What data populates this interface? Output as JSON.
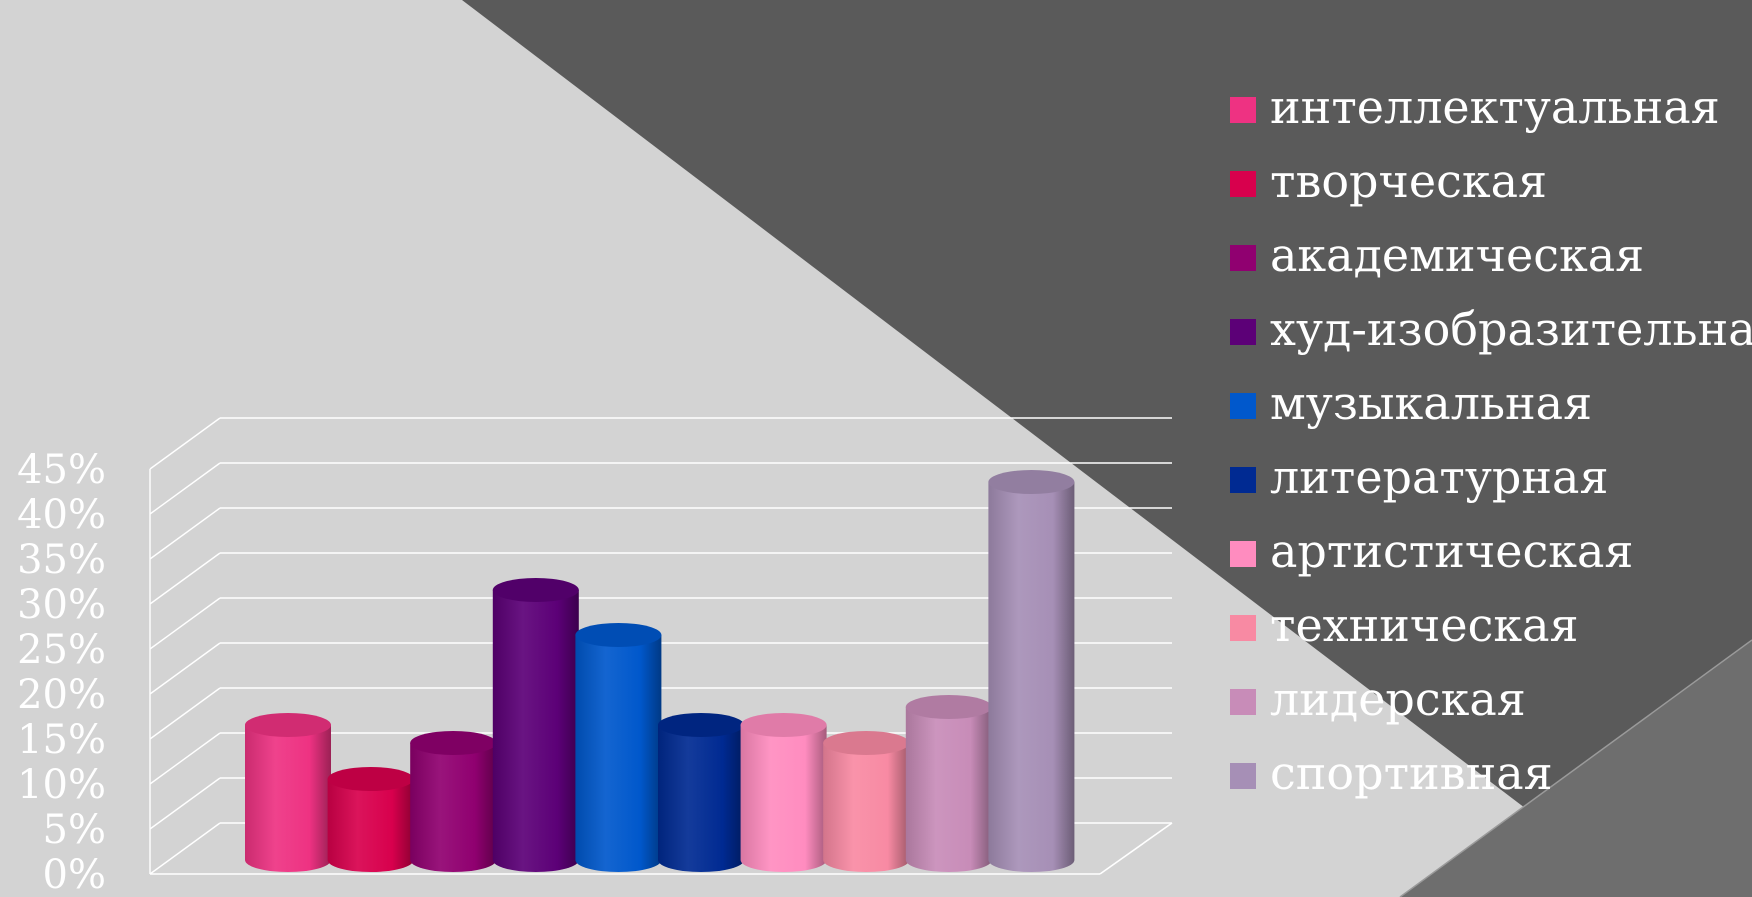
{
  "colors": {
    "background_light": "#d3d3d3",
    "background_dark": "#5a5a5a",
    "grid": "#ffffff",
    "tick_text": "#ffffff",
    "legend_text": "#ffffff"
  },
  "chart_data": {
    "type": "bar",
    "style": "3d-cylinder",
    "title": "",
    "xlabel": "",
    "ylabel": "",
    "ylim": [
      0,
      45
    ],
    "yticks": [
      "0%",
      "5%",
      "10%",
      "15%",
      "20%",
      "25%",
      "30%",
      "35%",
      "40%",
      "45%"
    ],
    "grid": true,
    "legend_position": "right",
    "series": [
      {
        "name": "интеллектуальная",
        "value": 15,
        "color": "#ee3282"
      },
      {
        "name": "творческая",
        "value": 9,
        "color": "#d8004d"
      },
      {
        "name": "академическая",
        "value": 13,
        "color": "#900070"
      },
      {
        "name": "худ-изобразительная",
        "value": 30,
        "color": "#5c0077"
      },
      {
        "name": "музыкальная",
        "value": 25,
        "color": "#0058cc"
      },
      {
        "name": "литературная",
        "value": 15,
        "color": "#002a92"
      },
      {
        "name": "артистическая",
        "value": 15,
        "color": "#ff8cbf"
      },
      {
        "name": "техническая",
        "value": 13,
        "color": "#f88aa3"
      },
      {
        "name": "лидерская",
        "value": 17,
        "color": "#c88cb8"
      },
      {
        "name": "спортивная",
        "value": 42,
        "color": "#a68fb6"
      }
    ]
  }
}
